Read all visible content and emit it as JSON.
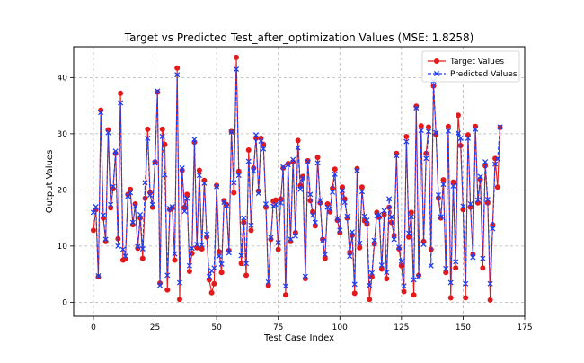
{
  "chart_data": {
    "type": "line",
    "title": "Target vs Predicted Test_after_optimization Values (MSE: 1.8258)",
    "xlabel": "Test Case Index",
    "ylabel": "Output Values",
    "xlim": [
      -8,
      175
    ],
    "ylim": [
      -2.5,
      45.5
    ],
    "xticks": [
      0,
      25,
      50,
      75,
      100,
      125,
      150,
      175
    ],
    "yticks": [
      0,
      10,
      20,
      30,
      40
    ],
    "grid": true,
    "legend_position": "top-right",
    "series": [
      {
        "name": "Target Values",
        "color": "#e31a1c",
        "marker": "circle",
        "linestyle": "solid",
        "values": [
          12.8,
          16.5,
          4.5,
          34.2,
          15.0,
          10.8,
          30.7,
          16.8,
          20.2,
          26.5,
          11.3,
          37.2,
          7.5,
          7.7,
          19.2,
          20.1,
          13.8,
          17.5,
          9.6,
          15.0,
          7.8,
          18.5,
          30.8,
          19.5,
          16.9,
          25.0,
          37.4,
          3.4,
          30.8,
          28.1,
          2.2,
          16.5,
          16.8,
          7.5,
          41.7,
          0.5,
          23.5,
          16.9,
          19.2,
          5.5,
          8.7,
          28.5,
          9.7,
          23.5,
          9.5,
          21.7,
          11.6,
          4.0,
          1.7,
          3.3,
          20.8,
          9.0,
          5.3,
          18.1,
          17.4,
          9.2,
          30.4,
          19.5,
          43.6,
          23.3,
          6.9,
          14.2,
          4.8,
          27.1,
          12.8,
          23.9,
          29.2,
          19.8,
          29.2,
          28.1,
          16.9,
          3.0,
          11.2,
          18.0,
          18.2,
          9.4,
          18.4,
          23.9,
          1.3,
          24.7,
          10.8,
          25.0,
          12.4,
          28.8,
          20.8,
          22.4,
          4.2,
          25.2,
          18.1,
          16.1,
          13.6,
          25.8,
          17.7,
          11.2,
          7.8,
          17.5,
          16.1,
          20.3,
          23.7,
          14.6,
          12.4,
          20.5,
          18.4,
          15.0,
          8.9,
          11.9,
          1.6,
          23.8,
          9.7,
          20.5,
          14.5,
          13.9,
          0.5,
          4.5,
          10.4,
          16.0,
          15.1,
          5.9,
          15.6,
          4.2,
          16.9,
          14.2,
          11.9,
          26.5,
          9.5,
          6.5,
          1.9,
          29.5,
          11.6,
          16.0,
          1.3,
          34.9,
          4.8,
          31.4,
          10.8,
          26.5,
          31.2,
          9.4,
          38.5,
          29.9,
          18.5,
          15.0,
          21.8,
          5.3,
          31.3,
          0.8,
          21.4,
          6.1,
          33.3,
          27.9,
          16.5,
          0.8,
          29.8,
          16.9,
          8.5,
          31.3,
          17.7,
          21.9,
          6.1,
          24.3,
          17.7,
          0.4,
          13.8,
          25.6,
          20.5,
          31.1
        ]
      },
      {
        "name": "Predicted Values",
        "color": "#1f3ff0",
        "marker": "x",
        "linestyle": "dashed",
        "values": [
          16.0,
          17.0,
          4.7,
          33.8,
          15.5,
          11.2,
          30.2,
          17.4,
          20.6,
          26.9,
          10.0,
          35.5,
          9.4,
          8.2,
          18.9,
          19.5,
          14.2,
          17.1,
          9.9,
          15.6,
          9.5,
          21.3,
          29.2,
          19.1,
          17.4,
          24.8,
          37.6,
          3.0,
          29.5,
          22.7,
          4.8,
          16.7,
          17.0,
          8.6,
          40.5,
          3.5,
          23.9,
          16.2,
          18.5,
          6.5,
          9.6,
          29.0,
          10.3,
          22.6,
          10.2,
          21.2,
          12.1,
          4.6,
          5.6,
          6.1,
          20.6,
          8.2,
          6.8,
          17.8,
          17.2,
          8.8,
          30.3,
          21.3,
          41.5,
          22.6,
          8.3,
          15.0,
          6.9,
          25.1,
          13.7,
          23.4,
          29.8,
          19.4,
          28.7,
          27.3,
          17.5,
          3.6,
          11.5,
          17.1,
          17.4,
          10.6,
          17.7,
          24.1,
          2.9,
          24.5,
          11.2,
          25.4,
          11.8,
          27.5,
          20.1,
          22.1,
          4.6,
          25.0,
          19.2,
          15.5,
          14.2,
          24.8,
          18.1,
          10.9,
          8.5,
          16.9,
          16.6,
          19.6,
          22.8,
          14.9,
          12.8,
          19.9,
          17.8,
          15.3,
          8.2,
          12.5,
          3.2,
          23.5,
          10.5,
          19.7,
          15.3,
          14.6,
          3.0,
          5.2,
          11.0,
          15.4,
          15.6,
          6.6,
          16.3,
          5.3,
          18.4,
          15.2,
          11.2,
          26.1,
          9.8,
          7.3,
          2.9,
          28.6,
          12.3,
          15.2,
          4.0,
          34.6,
          4.5,
          30.6,
          10.3,
          25.6,
          30.4,
          6.5,
          39.4,
          30.2,
          19.1,
          15.2,
          21.0,
          6.0,
          30.5,
          3.5,
          20.7,
          7.2,
          30.1,
          29.2,
          17.1,
          3.3,
          29.2,
          17.5,
          8.0,
          30.8,
          18.2,
          22.4,
          7.8,
          25.0,
          18.3,
          3.3,
          13.1,
          24.6,
          25.5,
          31.2
        ]
      }
    ]
  }
}
